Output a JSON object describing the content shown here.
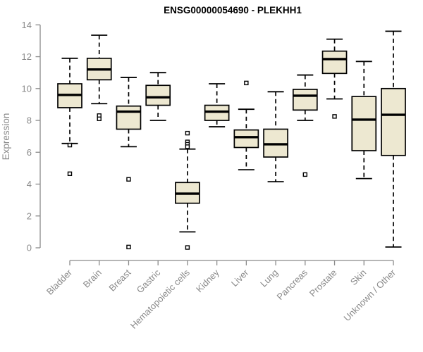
{
  "chart_data": {
    "type": "boxplot",
    "title": "ENSG00000054690 - PLEKHH1",
    "ylabel": "Expression",
    "xlabel": "",
    "ylim": [
      0,
      14
    ],
    "yticks": [
      0,
      2,
      4,
      6,
      8,
      10,
      12,
      14
    ],
    "grid": "off",
    "legend": "none",
    "categories": [
      "Bladder",
      "Brain",
      "Breast",
      "Gastric",
      "Hematopoietic cells",
      "Kidney",
      "Liver",
      "Lung",
      "Pancreas",
      "Prostate",
      "Skin",
      "Unknown / Other"
    ],
    "boxes": [
      {
        "label": "Bladder",
        "whisker_low": 6.55,
        "q1": 8.8,
        "median": 9.6,
        "q3": 10.3,
        "whisker_high": 11.9,
        "outliers": [
          6.45,
          4.65
        ]
      },
      {
        "label": "Brain",
        "whisker_low": 9.05,
        "q1": 10.55,
        "median": 11.2,
        "q3": 11.9,
        "whisker_high": 13.35,
        "outliers": [
          8.3,
          8.1
        ]
      },
      {
        "label": "Breast",
        "whisker_low": 6.35,
        "q1": 7.45,
        "median": 8.55,
        "q3": 8.9,
        "whisker_high": 10.7,
        "outliers": [
          4.3,
          0.05
        ]
      },
      {
        "label": "Gastric",
        "whisker_low": 8.0,
        "q1": 8.95,
        "median": 9.45,
        "q3": 10.2,
        "whisker_high": 11.0,
        "outliers": []
      },
      {
        "label": "Hematopoietic cells",
        "whisker_low": 1.0,
        "q1": 2.8,
        "median": 3.4,
        "q3": 4.1,
        "whisker_high": 6.2,
        "outliers": [
          7.2,
          6.65,
          6.5,
          6.35,
          0.02
        ]
      },
      {
        "label": "Kidney",
        "whisker_low": 7.6,
        "q1": 8.0,
        "median": 8.55,
        "q3": 8.95,
        "whisker_high": 10.3,
        "outliers": []
      },
      {
        "label": "Liver",
        "whisker_low": 4.9,
        "q1": 6.3,
        "median": 6.95,
        "q3": 7.4,
        "whisker_high": 8.7,
        "outliers": [
          10.35
        ]
      },
      {
        "label": "Lung",
        "whisker_low": 4.15,
        "q1": 5.7,
        "median": 6.5,
        "q3": 7.45,
        "whisker_high": 9.8,
        "outliers": []
      },
      {
        "label": "Pancreas",
        "whisker_low": 8.0,
        "q1": 8.65,
        "median": 9.55,
        "q3": 9.95,
        "whisker_high": 10.85,
        "outliers": [
          4.6
        ]
      },
      {
        "label": "Prostate",
        "whisker_low": 9.35,
        "q1": 10.95,
        "median": 11.85,
        "q3": 12.35,
        "whisker_high": 13.1,
        "outliers": [
          8.25
        ]
      },
      {
        "label": "Skin",
        "whisker_low": 4.35,
        "q1": 6.1,
        "median": 8.05,
        "q3": 9.5,
        "whisker_high": 11.7,
        "outliers": []
      },
      {
        "label": "Unknown / Other",
        "whisker_low": 0.05,
        "q1": 5.8,
        "median": 8.35,
        "q3": 10.0,
        "whisker_high": 13.6,
        "outliers": []
      }
    ],
    "colors": {
      "box_fill": "#ede8d1",
      "box_stroke": "#000000",
      "axis": "#8a8a8a",
      "tick_label": "#8a8a8a",
      "title": "#000000",
      "background": "#ffffff"
    }
  }
}
